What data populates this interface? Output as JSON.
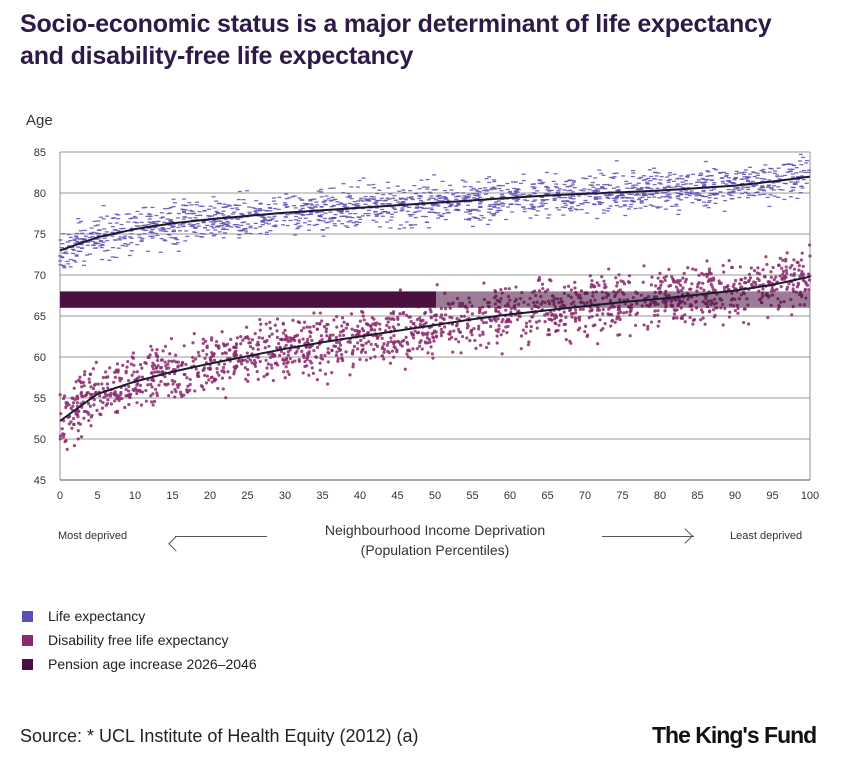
{
  "title_lines": [
    "Socio-economic status is a major determinant of life expectancy",
    "and disability-free life expectancy"
  ],
  "directions": {
    "left": "Most deprived",
    "right": "Least deprived",
    "center_line1": "Neighbourhood Income Deprivation",
    "center_line2": "(Population Percentiles)"
  },
  "legend": [
    {
      "label": "Life expectancy",
      "color": "#5a4fb3"
    },
    {
      "label": "Disability free life expectancy",
      "color": "#8b2a6e"
    },
    {
      "label": "Pension age increase 2026–2046",
      "color": "#4a1040"
    }
  ],
  "source": "Source: * UCL Institute of Health Equity (2012) (a)",
  "logo": "The King's Fund",
  "chart_data": {
    "type": "scatter",
    "ylabel": "Age",
    "xlim": [
      0,
      100
    ],
    "ylim": [
      45,
      85
    ],
    "xticks": [
      0,
      5,
      10,
      15,
      20,
      25,
      30,
      35,
      40,
      45,
      50,
      55,
      60,
      65,
      70,
      75,
      80,
      85,
      90,
      95,
      100
    ],
    "yticks": [
      45,
      50,
      55,
      60,
      65,
      70,
      75,
      80,
      85
    ],
    "grid": true,
    "band": {
      "name": "Pension age increase 2026–2046",
      "y_range": [
        66,
        68
      ],
      "color": "#4a1040"
    },
    "series": [
      {
        "name": "Life expectancy",
        "color": "#5a4fb3",
        "trend_x": [
          0,
          5,
          10,
          15,
          20,
          25,
          30,
          35,
          40,
          45,
          50,
          55,
          60,
          65,
          70,
          75,
          80,
          85,
          90,
          95,
          100
        ],
        "trend_y": [
          73.0,
          74.6,
          75.6,
          76.3,
          76.8,
          77.2,
          77.6,
          77.9,
          78.2,
          78.5,
          78.8,
          79.1,
          79.4,
          79.7,
          79.9,
          80.1,
          80.3,
          80.6,
          80.9,
          81.4,
          82.0
        ],
        "spread": 1.8
      },
      {
        "name": "Disability free life expectancy",
        "color": "#8b2a6e",
        "trend_x": [
          0,
          5,
          10,
          15,
          20,
          25,
          30,
          35,
          40,
          45,
          50,
          55,
          60,
          65,
          70,
          75,
          80,
          85,
          90,
          95,
          100
        ],
        "trend_y": [
          52.2,
          55.5,
          57.0,
          58.2,
          59.2,
          60.1,
          61.0,
          61.8,
          62.5,
          63.2,
          63.9,
          64.6,
          65.2,
          65.7,
          66.2,
          66.7,
          67.1,
          67.6,
          68.1,
          68.8,
          69.8
        ],
        "spread": 2.4
      }
    ]
  }
}
